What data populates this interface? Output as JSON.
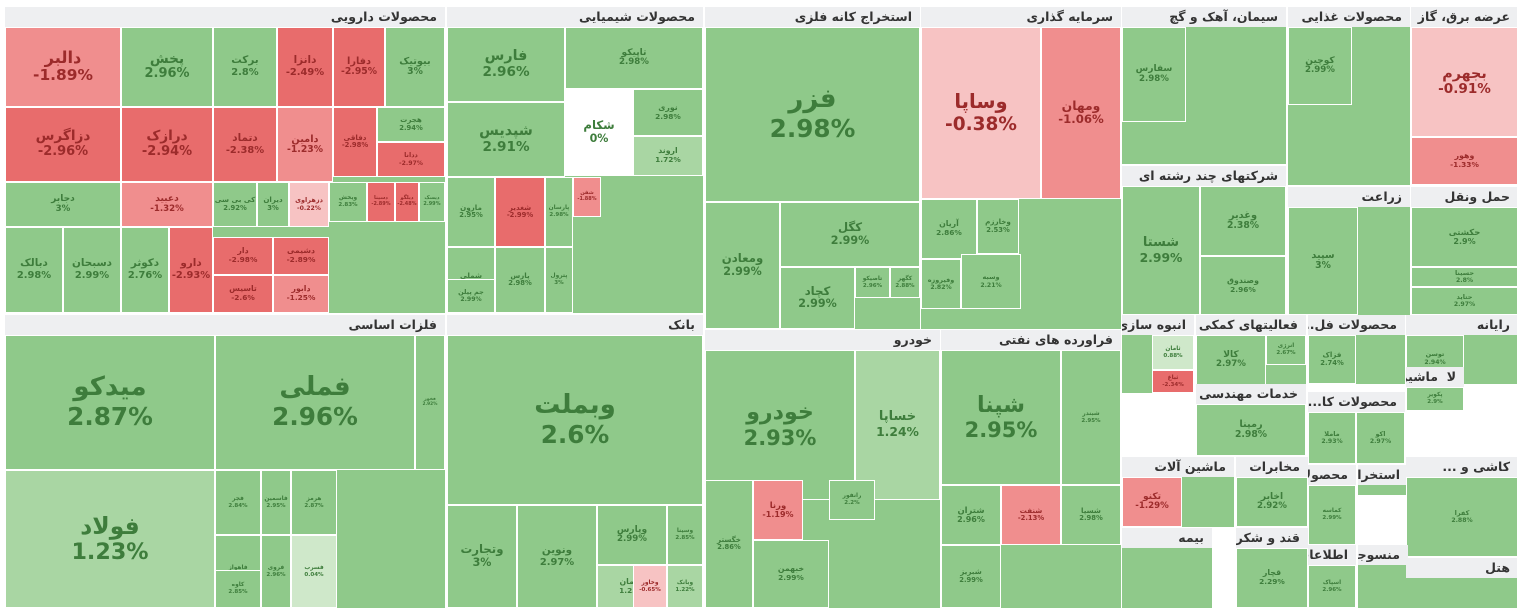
{
  "chart_data": {
    "type": "treemap",
    "colors": {
      "up_strong": "#8fc98a",
      "up_mid": "#a9d6a3",
      "up_light": "#cfe8ca",
      "zero": "#ffffff",
      "down_light": "#f7c3c3",
      "down_mid": "#f08e8e",
      "down_strong": "#e86c6c"
    },
    "sectors": [
      {
        "name": "محصولات دارویی",
        "stocks": [
          {
            "symbol": "دالبر",
            "change": "-1.89%",
            "value": -1.89
          },
          {
            "symbol": "پخش",
            "change": "2.96%",
            "value": 2.96
          },
          {
            "symbol": "برکت",
            "change": "2.8%",
            "value": 2.8
          },
          {
            "symbol": "دانزا",
            "change": "-2.49%",
            "value": -2.49
          },
          {
            "symbol": "دفارا",
            "change": "-2.95%",
            "value": -2.95
          },
          {
            "symbol": "بیوتیک",
            "change": "3%",
            "value": 3
          },
          {
            "symbol": "دزاگرس",
            "change": "-2.96%",
            "value": -2.96
          },
          {
            "symbol": "درازک",
            "change": "-2.94%",
            "value": -2.94
          },
          {
            "symbol": "دتماد",
            "change": "-2.38%",
            "value": -2.38
          },
          {
            "symbol": "دامین",
            "change": "-1.23%",
            "value": -1.23
          },
          {
            "symbol": "دفاقی",
            "change": "-2.98%",
            "value": -2.98
          },
          {
            "symbol": "هجرت",
            "change": "2.94%",
            "value": 2.94
          },
          {
            "symbol": "ددانا",
            "change": "-2.97%",
            "value": -2.97
          },
          {
            "symbol": "دجابر",
            "change": "3%",
            "value": 3
          },
          {
            "symbol": "دعبید",
            "change": "-1.32%",
            "value": -1.32
          },
          {
            "symbol": "کی بی سی",
            "change": "2.92%",
            "value": 2.92
          },
          {
            "symbol": "دیران",
            "change": "3%",
            "value": 3
          },
          {
            "symbol": "دزهراوی",
            "change": "-0.22%",
            "value": -0.22
          },
          {
            "symbol": "ویخش",
            "change": "2.83%",
            "value": 2.83
          },
          {
            "symbol": "دسینا",
            "change": "-2.89%",
            "value": -2.89
          },
          {
            "symbol": "دیلگو",
            "change": "-2.48%",
            "value": -2.48
          },
          {
            "symbol": "دیسک",
            "change": "2.99%",
            "value": 2.99
          },
          {
            "symbol": "دبالک",
            "change": "2.98%",
            "value": 2.98
          },
          {
            "symbol": "دسبحان",
            "change": "2.99%",
            "value": 2.99
          },
          {
            "symbol": "دکوثر",
            "change": "2.76%",
            "value": 2.76
          },
          {
            "symbol": "دارو",
            "change": "-2.93%",
            "value": -2.93
          },
          {
            "symbol": "دار",
            "change": "-2.98%",
            "value": -2.98
          },
          {
            "symbol": "دشیمی",
            "change": "-2.89%",
            "value": -2.89
          },
          {
            "symbol": "تاسیس",
            "change": "-2.6%",
            "value": -2.6
          },
          {
            "symbol": "دابور",
            "change": "-1.25%",
            "value": -1.25
          }
        ]
      },
      {
        "name": "محصولات شیمیایی",
        "stocks": [
          {
            "symbol": "فارس",
            "change": "2.96%",
            "value": 2.96
          },
          {
            "symbol": "تاپیکو",
            "change": "2.98%",
            "value": 2.98
          },
          {
            "symbol": "شکام",
            "change": "0%",
            "value": 0
          },
          {
            "symbol": "نوری",
            "change": "2.98%",
            "value": 2.98
          },
          {
            "symbol": "شپدیس",
            "change": "2.91%",
            "value": 2.91
          },
          {
            "symbol": "اروند",
            "change": "1.72%",
            "value": 1.72
          },
          {
            "symbol": "مارون",
            "change": "2.95%",
            "value": 2.95
          },
          {
            "symbol": "شغدیر",
            "change": "-2.99%",
            "value": -2.99
          },
          {
            "symbol": "پارسان",
            "change": "2.98%",
            "value": 2.98
          },
          {
            "symbol": "شفن",
            "change": "-1.88%",
            "value": -1.88
          },
          {
            "symbol": "شملی",
            "change": "2.91%",
            "value": 2.91
          },
          {
            "symbol": "جم پیلن",
            "change": "2.99%",
            "value": 2.99
          },
          {
            "symbol": "پارس",
            "change": "2.98%",
            "value": 2.98
          },
          {
            "symbol": "پترول",
            "change": "3%",
            "value": 3
          }
        ]
      },
      {
        "name": "استخراج کانه فلزی",
        "stocks": [
          {
            "symbol": "فزر",
            "change": "2.98%",
            "value": 2.98
          },
          {
            "symbol": "ومعادن",
            "change": "2.99%",
            "value": 2.99
          },
          {
            "symbol": "کگل",
            "change": "2.99%",
            "value": 2.99
          },
          {
            "symbol": "کچاد",
            "change": "2.99%",
            "value": 2.99
          },
          {
            "symbol": "تاصیکو",
            "change": "2.96%",
            "value": 2.96
          },
          {
            "symbol": "کگهر",
            "change": "2.88%",
            "value": 2.88
          }
        ]
      },
      {
        "name": "سرمایه گذاری",
        "stocks": [
          {
            "symbol": "وساپا",
            "change": "-0.38%",
            "value": -0.38
          },
          {
            "symbol": "ومهان",
            "change": "-1.06%",
            "value": -1.06
          },
          {
            "symbol": "آریان",
            "change": "2.86%",
            "value": 2.86
          },
          {
            "symbol": "وخارزم",
            "change": "2.53%",
            "value": 2.53
          },
          {
            "symbol": "وفیروزه",
            "change": "2.82%",
            "value": 2.82
          },
          {
            "symbol": "وسبه",
            "change": "2.21%",
            "value": 2.21
          }
        ]
      },
      {
        "name": "سیمان، آهک و گچ",
        "stocks": [
          {
            "symbol": "سفارس",
            "change": "2.98%",
            "value": 2.98
          }
        ]
      },
      {
        "name": "محصولات غذایی",
        "stocks": [
          {
            "symbol": "کوچین",
            "change": "2.99%",
            "value": 2.99
          }
        ]
      },
      {
        "name": "عرضه برق، گاز",
        "stocks": [
          {
            "symbol": "بجهرم",
            "change": "-0.91%",
            "value": -0.91
          },
          {
            "symbol": "وهور",
            "change": "-1.33%",
            "value": -1.33
          }
        ]
      },
      {
        "name": "شرکتهای چند رشته ای",
        "stocks": [
          {
            "symbol": "شستا",
            "change": "2.99%",
            "value": 2.99
          },
          {
            "symbol": "وغدیر",
            "change": "2.38%",
            "value": 2.38
          },
          {
            "symbol": "وصندوق",
            "change": "2.96%",
            "value": 2.96
          }
        ]
      },
      {
        "name": "زراعت",
        "stocks": [
          {
            "symbol": "سپید",
            "change": "3%",
            "value": 3
          }
        ]
      },
      {
        "name": "حمل ونقل",
        "stocks": [
          {
            "symbol": "حکشتی",
            "change": "2.9%",
            "value": 2.9
          },
          {
            "symbol": "حسینا",
            "change": "2.8%",
            "value": 2.8
          },
          {
            "symbol": "حتاید",
            "change": "2.97%",
            "value": 2.97
          }
        ]
      },
      {
        "name": "فلزات اساسی",
        "stocks": [
          {
            "symbol": "میدکو",
            "change": "2.87%",
            "value": 2.87
          },
          {
            "symbol": "فملی",
            "change": "2.96%",
            "value": 2.96
          },
          {
            "symbol": "فولاد",
            "change": "1.23%",
            "value": 1.23
          },
          {
            "symbol": "فخوز",
            "change": "2.92%",
            "value": 2.92
          },
          {
            "symbol": "فجر",
            "change": "2.84%",
            "value": 2.84
          },
          {
            "symbol": "فاسمین",
            "change": "2.95%",
            "value": 2.95
          },
          {
            "symbol": "هرمز",
            "change": "2.87%",
            "value": 2.87
          },
          {
            "symbol": "فاهواز",
            "change": "2.94%",
            "value": 2.94
          },
          {
            "symbol": "کاوه",
            "change": "2.85%",
            "value": 2.85
          },
          {
            "symbol": "فروی",
            "change": "2.96%",
            "value": 2.96
          },
          {
            "symbol": "فسرب",
            "change": "0.04%",
            "value": 0.04
          }
        ]
      },
      {
        "name": "بانک",
        "stocks": [
          {
            "symbol": "وبملت",
            "change": "2.6%",
            "value": 2.6
          },
          {
            "symbol": "وتجارت",
            "change": "3%",
            "value": 3
          },
          {
            "symbol": "ونوین",
            "change": "2.97%",
            "value": 2.97
          },
          {
            "symbol": "وپارس",
            "change": "2.99%",
            "value": 2.99
          },
          {
            "symbol": "وسینا",
            "change": "2.85%",
            "value": 2.85
          },
          {
            "symbol": "وبانک",
            "change": "1.22%",
            "value": 1.22
          },
          {
            "symbol": "سامان",
            "change": "1.25%",
            "value": 1.25
          },
          {
            "symbol": "وخاور",
            "change": "-0.65%",
            "value": -0.65
          }
        ]
      },
      {
        "name": "خودرو",
        "stocks": [
          {
            "symbol": "خودرو",
            "change": "2.93%",
            "value": 2.93
          },
          {
            "symbol": "خساپا",
            "change": "1.24%",
            "value": 1.24
          },
          {
            "symbol": "خگستر",
            "change": "2.86%",
            "value": 2.86
          },
          {
            "symbol": "ورنا",
            "change": "-1.19%",
            "value": -1.19
          },
          {
            "symbol": "خبهمن",
            "change": "2.99%",
            "value": 2.99
          },
          {
            "symbol": "رانفور",
            "change": "2.2%",
            "value": 2.2
          }
        ]
      },
      {
        "name": "فراورده های نفتی",
        "stocks": [
          {
            "symbol": "شپنا",
            "change": "2.95%",
            "value": 2.95
          },
          {
            "symbol": "شبندر",
            "change": "2.95%",
            "value": 2.95
          },
          {
            "symbol": "شتران",
            "change": "2.96%",
            "value": 2.96
          },
          {
            "symbol": "شنفت",
            "change": "-2.13%",
            "value": -2.13
          },
          {
            "symbol": "شسپا",
            "change": "2.98%",
            "value": 2.98
          },
          {
            "symbol": "شبریز",
            "change": "2.99%",
            "value": 2.99
          }
        ]
      },
      {
        "name": "انبوه سازی",
        "stocks": [
          {
            "symbol": "ثامان",
            "change": "0.88%",
            "value": 0.88
          },
          {
            "symbol": "ثباغ",
            "change": "-2.34%",
            "value": -2.34
          }
        ]
      },
      {
        "name": "فعالیتهای کمکی",
        "stocks": [
          {
            "symbol": "کالا",
            "change": "2.97%",
            "value": 2.97
          },
          {
            "symbol": "انرژی",
            "change": "2.67%",
            "value": 2.67
          }
        ]
      },
      {
        "name": "محصولات فل...",
        "stocks": [
          {
            "symbol": "فزاک",
            "change": "2.74%",
            "value": 2.74
          }
        ]
      },
      {
        "name": "رایانه",
        "stocks": [
          {
            "symbol": "توسن",
            "change": "2.94%",
            "value": 2.94
          }
        ]
      },
      {
        "name": "لاستیک و ...",
        "stocks": [
          {
            "symbol": "پکویر",
            "change": "2.9%",
            "value": 2.9
          }
        ]
      },
      {
        "name": "ماشین آلا...",
        "stocks": []
      },
      {
        "name": "خدمات مهندسی",
        "stocks": [
          {
            "symbol": "رمپنا",
            "change": "2.98%",
            "value": 2.98
          }
        ]
      },
      {
        "name": "محصولات کا...",
        "stocks": [
          {
            "symbol": "ماملا",
            "change": "2.93%",
            "value": 2.93
          },
          {
            "symbol": "اکو",
            "change": "2.97%",
            "value": 2.97
          }
        ]
      },
      {
        "name": "ماشین آلات",
        "stocks": [
          {
            "symbol": "تکنو",
            "change": "-1.29%",
            "value": -1.29
          }
        ]
      },
      {
        "name": "مخابرات",
        "stocks": [
          {
            "symbol": "اخابر",
            "change": "2.92%",
            "value": 2.92
          }
        ]
      },
      {
        "name": "محصولات ...",
        "stocks": [
          {
            "symbol": "کماسه",
            "change": "2.99%",
            "value": 2.99
          }
        ]
      },
      {
        "name": "استخراج ن...",
        "stocks": []
      },
      {
        "name": "کاشی و ...",
        "stocks": [
          {
            "symbol": "کفرا",
            "change": "2.88%",
            "value": 2.88
          }
        ]
      },
      {
        "name": "بیمه",
        "stocks": []
      },
      {
        "name": "قند و شکر",
        "stocks": [
          {
            "symbol": "قچار",
            "change": "2.29%",
            "value": 2.29
          }
        ]
      },
      {
        "name": "اطلاعات و ...",
        "stocks": [
          {
            "symbol": "اسپاک",
            "change": "2.96%",
            "value": 2.96
          }
        ]
      },
      {
        "name": "منسوجات",
        "stocks": []
      },
      {
        "name": "هتل",
        "stocks": []
      }
    ]
  }
}
